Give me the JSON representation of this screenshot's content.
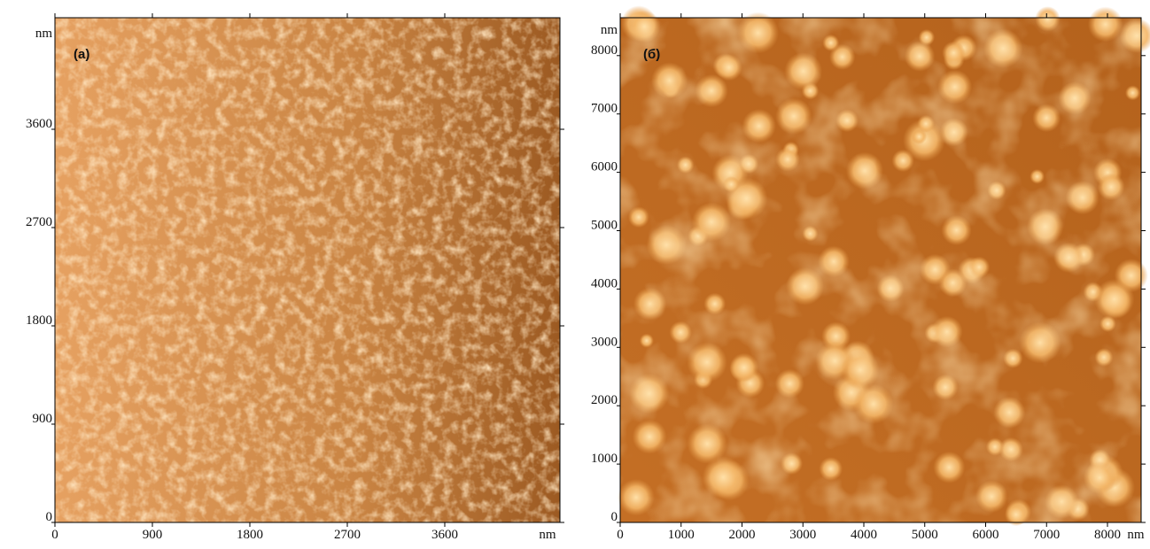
{
  "panels": [
    {
      "label": "(a)",
      "xticks": [
        0,
        900,
        1800,
        2700,
        3600
      ],
      "yticks": [
        0,
        900,
        1800,
        2700,
        3600
      ],
      "x_unit": "nm",
      "y_unit": "nm"
    },
    {
      "label": "(б)",
      "xticks": [
        0,
        1000,
        2000,
        3000,
        4000,
        5000,
        6000,
        7000,
        8000
      ],
      "yticks": [
        0,
        1000,
        2000,
        3000,
        4000,
        5000,
        6000,
        7000,
        8000
      ],
      "x_unit": "nm",
      "y_unit": "nm"
    }
  ]
}
